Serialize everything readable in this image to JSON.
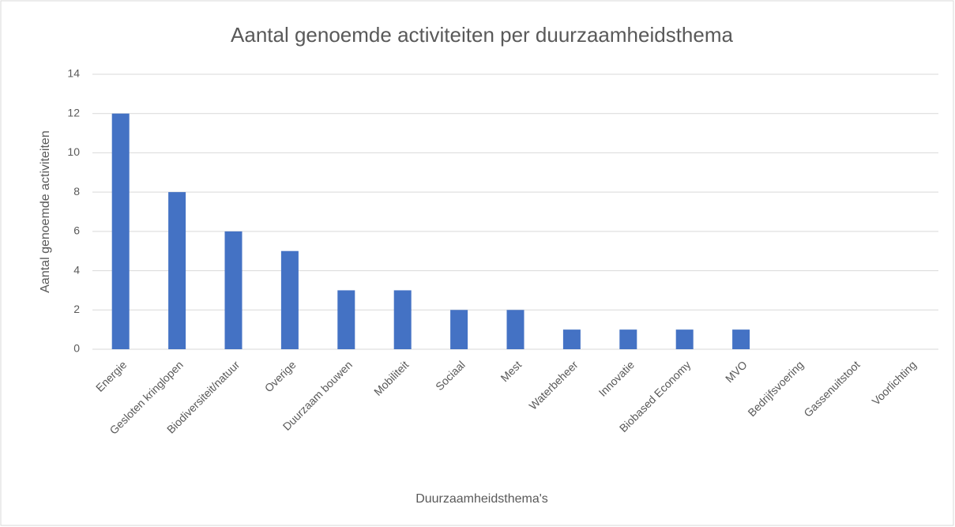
{
  "chart_data": {
    "type": "bar",
    "title": "Aantal genoemde activiteiten per duurzaamheidsthema",
    "x_label": "Duurzaamheidsthema's",
    "y_label": "Aantal genoemde activiteiten",
    "categories": [
      "Energie",
      "Gesloten kringlopen",
      "Biodiversiteit/natuur",
      "Overige",
      "Duurzaam bouwen",
      "Mobiliteit",
      "Sociaal",
      "Mest",
      "Waterbeheer",
      "Innovatie",
      "Biobased Economy",
      "MVO",
      "Bedrijfsvoering",
      "Gassenuitstoot",
      "Voorlichting"
    ],
    "values": [
      12,
      8,
      6,
      5,
      3,
      3,
      2,
      2,
      1,
      1,
      1,
      1,
      0,
      0,
      0
    ],
    "color": "#4472c4",
    "ylim": [
      0,
      14
    ],
    "yticks": [
      0,
      2,
      4,
      6,
      8,
      10,
      12,
      14
    ],
    "grid": true
  }
}
